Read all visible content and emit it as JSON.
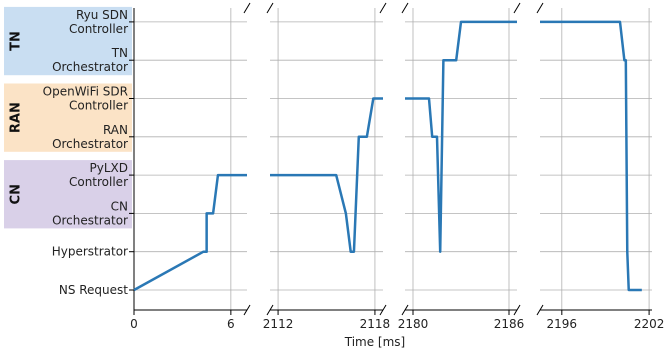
{
  "chart_data": {
    "type": "line",
    "xlabel": "Time [ms]",
    "ylabel": "",
    "grid": true,
    "line_color": "#2a78b5",
    "y_categories": [
      "NS Request",
      "Hyperstrator",
      "CN\nOrchestrator",
      "PyLXD\nController",
      "RAN\nOrchestrator",
      "OpenWiFi SDR\nController",
      "TN\nOrchestrator",
      "Ryu SDN\nController"
    ],
    "groups": [
      {
        "name": "TN",
        "color": "#c9def2",
        "rows": [
          6,
          7
        ]
      },
      {
        "name": "RAN",
        "color": "#fbe3c6",
        "rows": [
          4,
          5
        ]
      },
      {
        "name": "CN",
        "color": "#d9d0e8",
        "rows": [
          2,
          3
        ]
      }
    ],
    "panels": [
      {
        "xlim": [
          0,
          7
        ],
        "ticks": [
          0,
          6
        ],
        "tick_labels": [
          "0",
          "6"
        ],
        "points": [
          [
            0,
            0
          ],
          [
            4.3,
            1
          ],
          [
            4.5,
            1
          ],
          [
            4.5,
            2
          ],
          [
            4.9,
            2
          ],
          [
            5.2,
            3
          ],
          [
            7,
            3
          ]
        ]
      },
      {
        "xlim": [
          2111.5,
          2118.5
        ],
        "ticks": [
          2112,
          2118
        ],
        "tick_labels": [
          "2112",
          "2118"
        ],
        "points": [
          [
            2111.5,
            3
          ],
          [
            2115.6,
            3
          ],
          [
            2116.2,
            2
          ],
          [
            2116.5,
            1
          ],
          [
            2116.7,
            1
          ],
          [
            2117.0,
            4
          ],
          [
            2117.5,
            4
          ],
          [
            2117.9,
            5
          ],
          [
            2118.5,
            5
          ]
        ]
      },
      {
        "xlim": [
          2179.5,
          2186.5
        ],
        "ticks": [
          2180,
          2186
        ],
        "tick_labels": [
          "2180",
          "2186"
        ],
        "points": [
          [
            2179.5,
            5
          ],
          [
            2181.0,
            5
          ],
          [
            2181.2,
            4
          ],
          [
            2181.5,
            4
          ],
          [
            2181.7,
            1
          ],
          [
            2181.9,
            6
          ],
          [
            2182.7,
            6
          ],
          [
            2183.0,
            7
          ],
          [
            2186.5,
            7
          ]
        ]
      },
      {
        "xlim": [
          2194.5,
          2202.2
        ],
        "ticks": [
          2196,
          2202
        ],
        "tick_labels": [
          "2196",
          "2202"
        ],
        "points": [
          [
            2194.5,
            7
          ],
          [
            2200.0,
            7
          ],
          [
            2200.3,
            6
          ],
          [
            2200.4,
            6
          ],
          [
            2200.5,
            1
          ],
          [
            2200.6,
            0
          ],
          [
            2201.5,
            0
          ]
        ]
      }
    ]
  }
}
